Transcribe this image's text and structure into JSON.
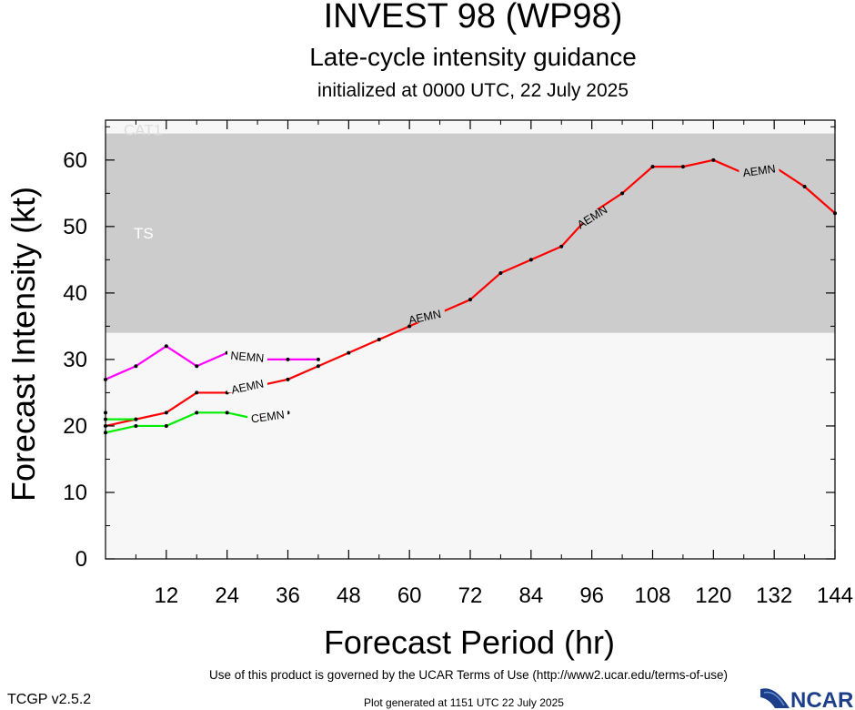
{
  "chart_data": {
    "type": "line",
    "title": "INVEST 98 (WP98)",
    "subtitle": "Late-cycle intensity guidance",
    "init_line": "initialized at 0000 UTC, 22 July 2025",
    "xlabel": "Forecast Period (hr)",
    "ylabel": "Forecast Intensity (kt)",
    "xlim": [
      0,
      144
    ],
    "ylim": [
      0,
      66
    ],
    "xticks": [
      12,
      24,
      36,
      48,
      60,
      72,
      84,
      96,
      108,
      120,
      132,
      144
    ],
    "yticks": [
      0,
      10,
      20,
      30,
      40,
      50,
      60
    ],
    "bands": [
      {
        "label": "TS",
        "from": 34,
        "to": 64,
        "color": "#cccccc"
      },
      {
        "label": "CAT1",
        "from": 64,
        "to": 66,
        "color": "#f7f7f7"
      }
    ],
    "below_band_color": "#f7f7f7",
    "series": [
      {
        "name": "AEMN",
        "color": "#ff0000",
        "x": [
          0,
          6,
          12,
          18,
          24,
          30,
          36,
          42,
          48,
          54,
          60,
          66,
          72,
          78,
          84,
          90,
          96,
          102,
          108,
          114,
          120,
          126,
          132,
          138,
          144
        ],
        "y": [
          20,
          21,
          22,
          25,
          25,
          26,
          27,
          29,
          31,
          33,
          35,
          37,
          39,
          43,
          45,
          47,
          52,
          55,
          59,
          59,
          60,
          58,
          59,
          56,
          52
        ],
        "label_positions": [
          [
            28,
            26
          ],
          [
            63,
            36.5
          ],
          [
            96,
            51.5
          ],
          [
            129,
            58.5
          ]
        ]
      },
      {
        "name": "NEMN",
        "color": "#ff00ff",
        "x": [
          0,
          6,
          12,
          18,
          24,
          30,
          36,
          42
        ],
        "y": [
          27,
          29,
          32,
          29,
          31,
          30,
          30,
          30
        ],
        "label_positions": [
          [
            28,
            30.5
          ]
        ]
      },
      {
        "name": "CEMN",
        "color": "#00ee00",
        "x": [
          0,
          6,
          12,
          18,
          24,
          30,
          36
        ],
        "y": [
          19,
          20,
          20,
          22,
          22,
          21,
          22
        ],
        "label_positions": [
          [
            32,
            21.5
          ]
        ]
      },
      {
        "name": "",
        "color": "#00ee00",
        "x": [
          0,
          6
        ],
        "y": [
          21,
          21
        ],
        "label_positions": []
      }
    ],
    "extra_points": [
      [
        0,
        22
      ]
    ]
  },
  "footer": {
    "terms": "Use of this product is governed by the UCAR Terms of Use (http://www2.ucar.edu/terms-of-use)",
    "version": "TCGP v2.5.2",
    "generated": "Plot generated at 1151 UTC   22 July 2025",
    "logo_text": "NCAR"
  }
}
